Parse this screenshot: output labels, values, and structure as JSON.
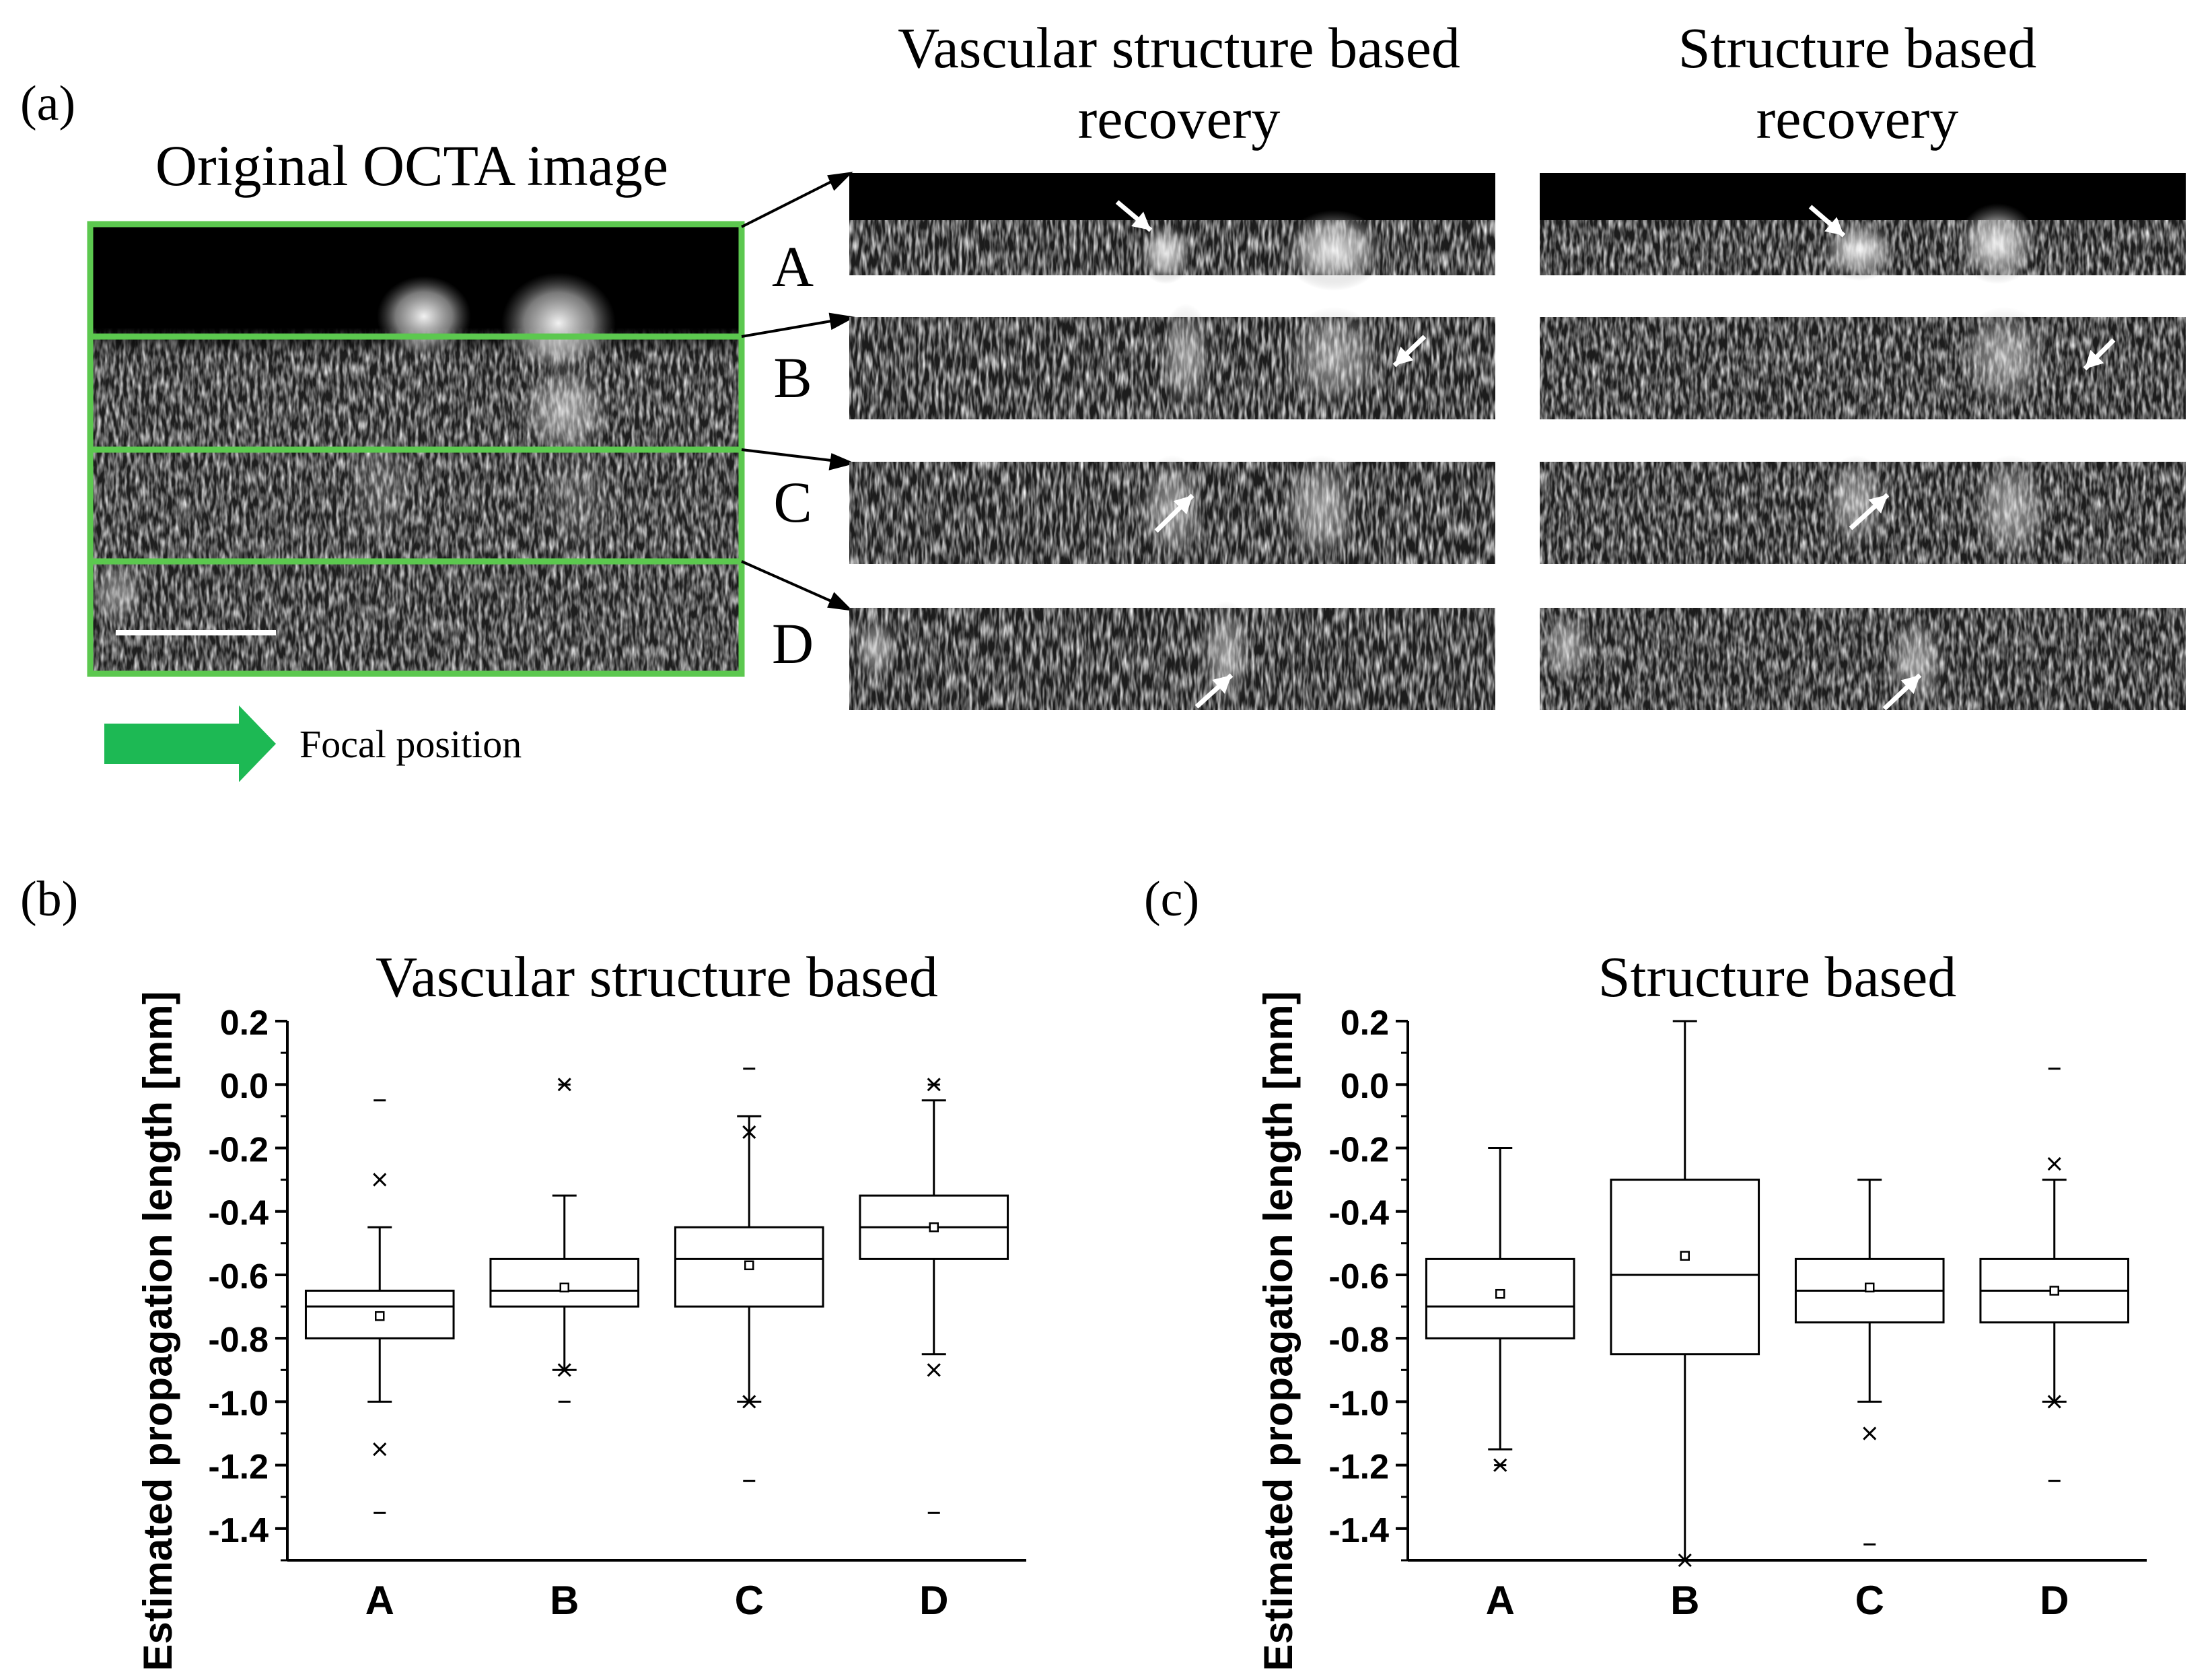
{
  "panel_a": {
    "label": "(a)",
    "original_title": "Original OCTA image",
    "vascular_title_line1": "Vascular structure based",
    "vascular_title_line2": "recovery",
    "structure_title_line1": "Structure based",
    "structure_title_line2": "recovery",
    "row_labels": [
      "A",
      "B",
      "C",
      "D"
    ],
    "legend_text": "Focal position",
    "frame_color": "#5cc84f",
    "arrow_color": "#1db954"
  },
  "chart_data": [
    {
      "type": "box",
      "panel_label": "(b)",
      "title": "Vascular structure based",
      "ylabel": "Estimated propagation length [mm]",
      "xlabel": "",
      "ylim": [
        -1.5,
        0.2
      ],
      "yticks": [
        "0.2",
        "0.0",
        "-0.2",
        "-0.4",
        "-0.6",
        "-0.8",
        "-1.0",
        "-1.2",
        "-1.4"
      ],
      "categories": [
        "A",
        "B",
        "C",
        "D"
      ],
      "boxes": [
        {
          "q1": -0.8,
          "median": -0.7,
          "q3": -0.65,
          "whisker_low": -1.0,
          "whisker_high": -0.45,
          "mean": -0.73,
          "outliers": [
            -0.3,
            -1.15
          ],
          "extremes": [
            -0.05,
            -1.35
          ]
        },
        {
          "q1": -0.7,
          "median": -0.65,
          "q3": -0.55,
          "whisker_low": -0.9,
          "whisker_high": -0.35,
          "mean": -0.64,
          "outliers": [
            0.0,
            -0.9
          ],
          "extremes": [
            0.0,
            -1.0
          ]
        },
        {
          "q1": -0.7,
          "median": -0.55,
          "q3": -0.45,
          "whisker_low": -1.0,
          "whisker_high": -0.1,
          "mean": -0.57,
          "outliers": [
            -0.15,
            -1.0
          ],
          "extremes": [
            0.05,
            -1.25
          ]
        },
        {
          "q1": -0.55,
          "median": -0.45,
          "q3": -0.35,
          "whisker_low": -0.85,
          "whisker_high": -0.05,
          "mean": -0.45,
          "outliers": [
            0.0,
            -0.9
          ],
          "extremes": [
            0.0,
            -1.35
          ]
        }
      ]
    },
    {
      "type": "box",
      "panel_label": "(c)",
      "title": "Structure based",
      "ylabel": "Estimated propagation length [mm]",
      "xlabel": "",
      "ylim": [
        -1.5,
        0.2
      ],
      "yticks": [
        "0.2",
        "0.0",
        "-0.2",
        "-0.4",
        "-0.6",
        "-0.8",
        "-1.0",
        "-1.2",
        "-1.4"
      ],
      "categories": [
        "A",
        "B",
        "C",
        "D"
      ],
      "boxes": [
        {
          "q1": -0.8,
          "median": -0.7,
          "q3": -0.55,
          "whisker_low": -1.15,
          "whisker_high": -0.2,
          "mean": -0.66,
          "outliers": [
            -1.2
          ],
          "extremes": [
            -1.2
          ]
        },
        {
          "q1": -0.85,
          "median": -0.6,
          "q3": -0.3,
          "whisker_low": -1.5,
          "whisker_high": 0.2,
          "mean": -0.54,
          "outliers": [
            -1.5
          ],
          "extremes": []
        },
        {
          "q1": -0.75,
          "median": -0.65,
          "q3": -0.55,
          "whisker_low": -1.0,
          "whisker_high": -0.3,
          "mean": -0.64,
          "outliers": [
            -1.1
          ],
          "extremes": [
            -1.45
          ]
        },
        {
          "q1": -0.75,
          "median": -0.65,
          "q3": -0.55,
          "whisker_low": -1.0,
          "whisker_high": -0.3,
          "mean": -0.65,
          "outliers": [
            -0.25,
            -1.0
          ],
          "extremes": [
            0.05,
            -1.25
          ]
        }
      ]
    }
  ]
}
